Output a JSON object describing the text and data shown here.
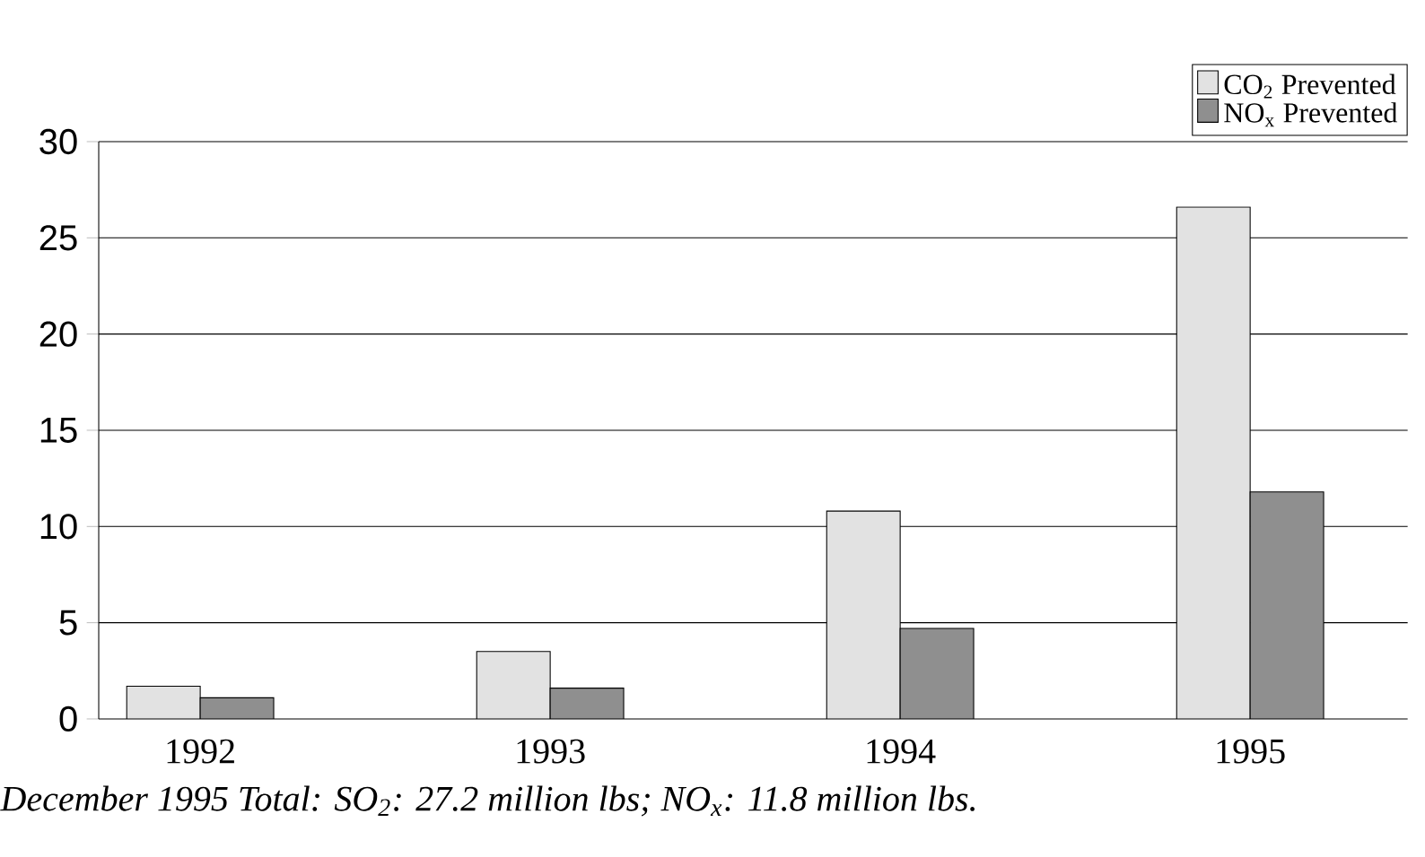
{
  "chart_data": {
    "type": "bar",
    "categories": [
      "1992",
      "1993",
      "1994",
      "1995"
    ],
    "series": [
      {
        "name": "CO$_{2}$ Prevented",
        "color": "#e2e2e2",
        "values": [
          1.7,
          3.5,
          10.8,
          26.6
        ]
      },
      {
        "name": "NO$_{x}$ Prevented",
        "color": "#8f8f8f",
        "values": [
          1.1,
          1.6,
          4.7,
          11.8
        ]
      }
    ],
    "ylim": [
      0,
      30
    ],
    "yticks": [
      0,
      5,
      10,
      15,
      20,
      25,
      30
    ],
    "grid": "y",
    "legend": "top right",
    "annotations": [
      "December 1995 Total: SO$_{2}$: 27.2 million lbs; NO$_{x}$: 11.8 million lbs."
    ]
  }
}
